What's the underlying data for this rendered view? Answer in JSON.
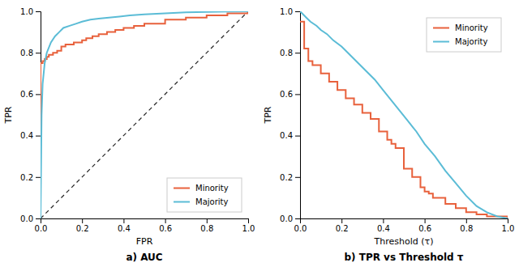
{
  "chart_data": [
    {
      "type": "line",
      "title": "a) AUC",
      "xlabel": "FPR",
      "ylabel": "TPR",
      "xlim": [
        0,
        1
      ],
      "ylim": [
        0,
        1
      ],
      "xticks": [
        {
          "value": 0,
          "label": "0.0"
        },
        0.2,
        0.4,
        0.6,
        0.8,
        {
          "value": 1,
          "label": "1.0"
        }
      ],
      "yticks": [
        {
          "value": 0,
          "label": "0.0"
        },
        0.2,
        0.4,
        0.6,
        0.8,
        {
          "value": 1,
          "label": "1.0"
        }
      ],
      "grid": false,
      "legend": "lower right",
      "series": [
        {
          "x": [
            0,
            1
          ],
          "values": [
            0,
            1
          ],
          "color": "#222222",
          "type": "line",
          "line_style": "dashed"
        },
        {
          "name": "Minority",
          "color": "#e8613c",
          "type": "step",
          "x": [
            0.0,
            0.0,
            0.01,
            0.02,
            0.03,
            0.04,
            0.06,
            0.08,
            0.1,
            0.12,
            0.14,
            0.16,
            0.18,
            0.2,
            0.22,
            0.25,
            0.28,
            0.32,
            0.36,
            0.4,
            0.45,
            0.5,
            0.6,
            0.7,
            0.8,
            0.9,
            1.0
          ],
          "values": [
            0.0,
            0.75,
            0.76,
            0.77,
            0.78,
            0.79,
            0.8,
            0.81,
            0.83,
            0.84,
            0.84,
            0.85,
            0.85,
            0.86,
            0.87,
            0.88,
            0.89,
            0.9,
            0.91,
            0.92,
            0.93,
            0.94,
            0.96,
            0.97,
            0.98,
            0.99,
            1.0
          ]
        },
        {
          "name": "Majority",
          "color": "#5bbcd6",
          "type": "line",
          "x": [
            0.0,
            0.005,
            0.01,
            0.02,
            0.03,
            0.05,
            0.07,
            0.09,
            0.11,
            0.14,
            0.17,
            0.2,
            0.24,
            0.28,
            0.33,
            0.38,
            0.43,
            0.5,
            0.6,
            0.7,
            0.8,
            0.9,
            1.0
          ],
          "values": [
            0.0,
            0.5,
            0.65,
            0.75,
            0.8,
            0.85,
            0.88,
            0.9,
            0.92,
            0.93,
            0.94,
            0.95,
            0.96,
            0.965,
            0.97,
            0.975,
            0.98,
            0.985,
            0.99,
            0.995,
            0.997,
            0.999,
            1.0
          ]
        }
      ]
    },
    {
      "type": "line",
      "title": "b) TPR vs Threshold τ",
      "xlabel": "Threshold (τ)",
      "ylabel": "TPR",
      "xlim": [
        0,
        1
      ],
      "ylim": [
        0,
        1
      ],
      "xticks": [
        {
          "value": 0,
          "label": "0.0"
        },
        0.2,
        0.4,
        0.6,
        0.8,
        {
          "value": 1,
          "label": "1.0"
        }
      ],
      "yticks": [
        {
          "value": 0,
          "label": "0.0"
        },
        0.2,
        0.4,
        0.6,
        0.8,
        {
          "value": 1,
          "label": "1.0"
        }
      ],
      "grid": false,
      "legend": "upper right",
      "series": [
        {
          "name": "Minority",
          "color": "#e8613c",
          "type": "step",
          "x": [
            0.0,
            0.02,
            0.04,
            0.06,
            0.1,
            0.14,
            0.18,
            0.22,
            0.26,
            0.3,
            0.34,
            0.38,
            0.42,
            0.44,
            0.46,
            0.5,
            0.54,
            0.58,
            0.6,
            0.62,
            0.64,
            0.7,
            0.75,
            0.8,
            0.85,
            0.9,
            1.0
          ],
          "values": [
            0.95,
            0.82,
            0.76,
            0.74,
            0.7,
            0.66,
            0.62,
            0.58,
            0.55,
            0.51,
            0.48,
            0.42,
            0.38,
            0.36,
            0.34,
            0.24,
            0.2,
            0.15,
            0.13,
            0.12,
            0.1,
            0.07,
            0.05,
            0.03,
            0.02,
            0.01,
            0.0
          ]
        },
        {
          "name": "Majority",
          "color": "#5bbcd6",
          "type": "line",
          "x": [
            0.0,
            0.01,
            0.03,
            0.05,
            0.08,
            0.1,
            0.13,
            0.16,
            0.2,
            0.24,
            0.28,
            0.32,
            0.36,
            0.4,
            0.44,
            0.48,
            0.52,
            0.56,
            0.6,
            0.65,
            0.7,
            0.75,
            0.8,
            0.85,
            0.9,
            0.95,
            1.0
          ],
          "values": [
            1.0,
            0.99,
            0.97,
            0.95,
            0.93,
            0.91,
            0.89,
            0.86,
            0.83,
            0.79,
            0.75,
            0.71,
            0.67,
            0.62,
            0.57,
            0.52,
            0.47,
            0.42,
            0.36,
            0.3,
            0.23,
            0.17,
            0.11,
            0.06,
            0.03,
            0.01,
            0.0
          ]
        }
      ]
    }
  ]
}
